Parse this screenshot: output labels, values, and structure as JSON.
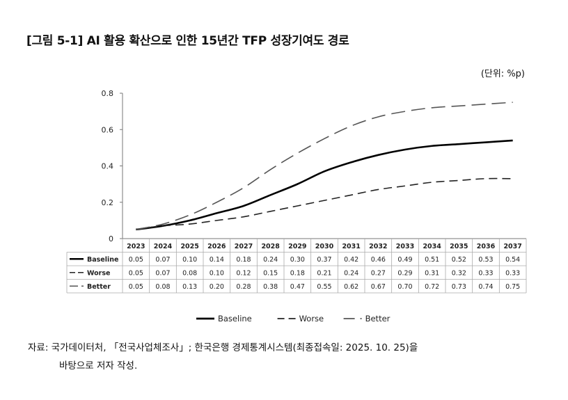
{
  "header": {
    "title": "[그림 5-1] AI 활용 확산으로 인한 15년간 TFP 성장기여도 경로",
    "unit": "(단위: %p)"
  },
  "source": {
    "line1": "자료: 국가데이터처, 「전국사업체조사」; 한국은행 경제통계시스템(최종접속일: 2025. 10. 25)을",
    "line2": "바탕으로 저자 작성."
  },
  "chart_data": {
    "type": "line",
    "title": "[그림 5-1] AI 활용 확산으로 인한 15년간 TFP 성장기여도 경로",
    "xlabel": "",
    "ylabel": "",
    "ylim": [
      0,
      0.8
    ],
    "yticks": [
      "0",
      "0.2",
      "0.4",
      "0.6",
      "0.8"
    ],
    "x": [
      "2023",
      "2024",
      "2025",
      "2026",
      "2027",
      "2028",
      "2029",
      "2030",
      "2031",
      "2032",
      "2033",
      "2034",
      "2035",
      "2036",
      "2037"
    ],
    "grid": false,
    "legend": "bottom",
    "data_table": true,
    "series": [
      {
        "name": "Baseline",
        "style": "solid",
        "color": "#000000",
        "values": [
          0.05,
          0.07,
          0.1,
          0.14,
          0.18,
          0.24,
          0.3,
          0.37,
          0.42,
          0.46,
          0.49,
          0.51,
          0.52,
          0.53,
          0.54
        ],
        "labels": [
          "0.05",
          "0.07",
          "0.10",
          "0.14",
          "0.18",
          "0.24",
          "0.30",
          "0.37",
          "0.42",
          "0.46",
          "0.49",
          "0.51",
          "0.52",
          "0.53",
          "0.54"
        ]
      },
      {
        "name": "Worse",
        "style": "dashed",
        "color": "#222222",
        "values": [
          0.05,
          0.07,
          0.08,
          0.1,
          0.12,
          0.15,
          0.18,
          0.21,
          0.24,
          0.27,
          0.29,
          0.31,
          0.32,
          0.33,
          0.33
        ],
        "labels": [
          "0.05",
          "0.07",
          "0.08",
          "0.10",
          "0.12",
          "0.15",
          "0.18",
          "0.21",
          "0.24",
          "0.27",
          "0.29",
          "0.31",
          "0.32",
          "0.33",
          "0.33"
        ]
      },
      {
        "name": "Better",
        "style": "long-dashed",
        "color": "#555555",
        "values": [
          0.05,
          0.08,
          0.13,
          0.2,
          0.28,
          0.38,
          0.47,
          0.55,
          0.62,
          0.67,
          0.7,
          0.72,
          0.73,
          0.74,
          0.75
        ],
        "labels": [
          "0.05",
          "0.08",
          "0.13",
          "0.20",
          "0.28",
          "0.38",
          "0.47",
          "0.55",
          "0.62",
          "0.67",
          "0.70",
          "0.72",
          "0.73",
          "0.74",
          "0.75"
        ]
      }
    ]
  }
}
